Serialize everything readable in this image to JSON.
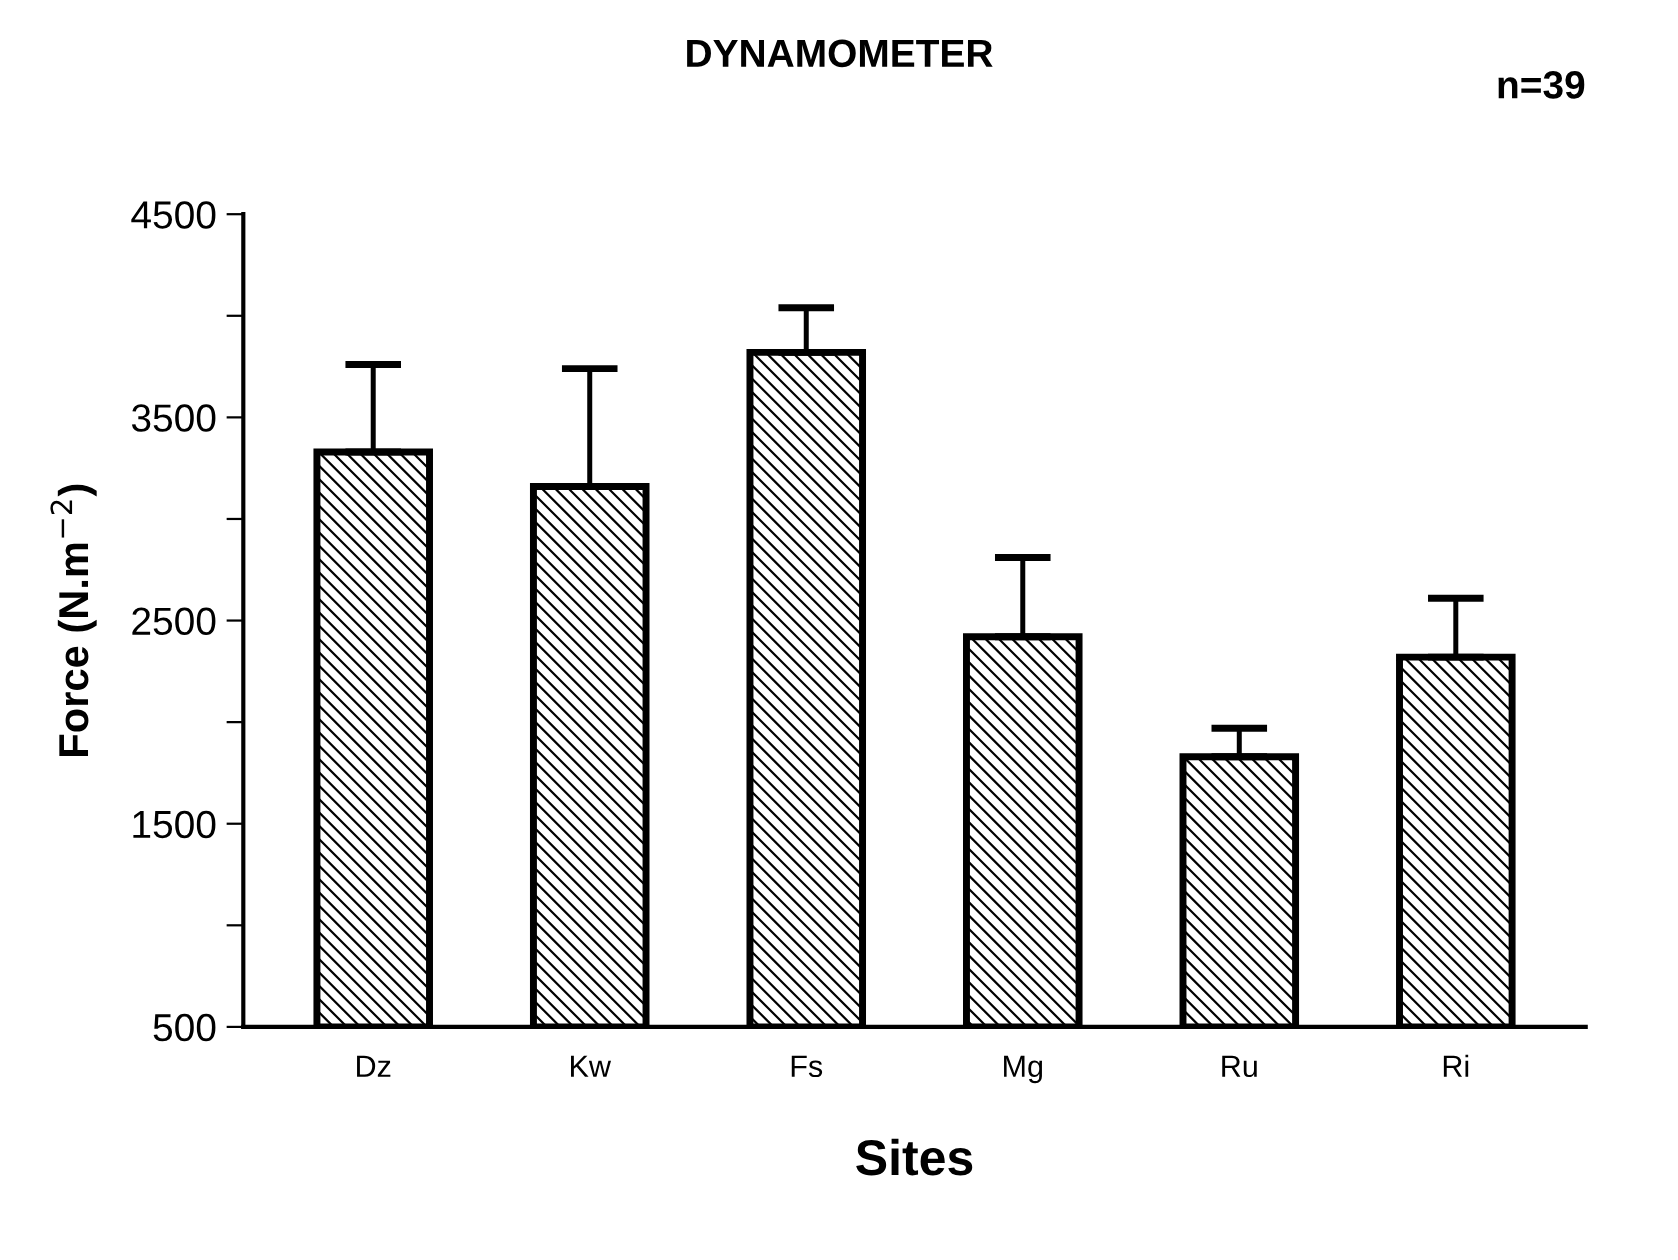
{
  "chart_data": {
    "type": "bar",
    "title": "DYNAMOMETER",
    "xlabel": "Sites",
    "ylabel": "Force (N.m$^{−2}$)",
    "annotations": [
      "n=39"
    ],
    "categories": [
      "Dz",
      "Kw",
      "Fs",
      "Mg",
      "Ru",
      "Ri"
    ],
    "values": [
      3330,
      3160,
      3820,
      2420,
      1830,
      2320
    ],
    "errors": [
      [
        3330,
        3760
      ],
      [
        3160,
        3740
      ],
      [
        3820,
        4040
      ],
      [
        2420,
        2810
      ],
      [
        1830,
        1970
      ],
      [
        2320,
        2610
      ]
    ],
    "color": "#000000",
    "ylim": [
      500,
      4500
    ],
    "yticks": [
      500,
      {
        "value": 1000,
        "label": null
      },
      1500,
      {
        "value": 2000,
        "label": null
      },
      2500,
      {
        "value": 3000,
        "label": null
      },
      3500,
      {
        "value": 4000,
        "label": null
      },
      4500
    ],
    "grid": false,
    "legend": false
  }
}
